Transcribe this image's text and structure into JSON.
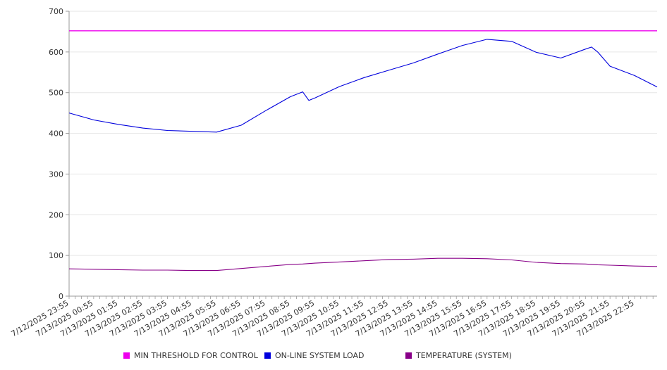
{
  "chart_data": {
    "type": "line",
    "title": "",
    "xlabel": "",
    "ylabel": "",
    "ylim": [
      0,
      700
    ],
    "yticks": [
      0,
      100,
      200,
      300,
      400,
      500,
      600,
      700
    ],
    "grid": true,
    "legend_position": "bottom",
    "x_tick_labels": [
      "7/12/2025 23:55",
      "7/13/2025 00:55",
      "7/13/2025 01:55",
      "7/13/2025 02:55",
      "7/13/2025 03:55",
      "7/13/2025 04:55",
      "7/13/2025 05:55",
      "7/13/2025 06:55",
      "7/13/2025 07:55",
      "7/13/2025 08:55",
      "7/13/2025 09:55",
      "7/13/2025 10:55",
      "7/13/2025 11:55",
      "7/13/2025 12:55",
      "7/13/2025 13:55",
      "7/13/2025 14:55",
      "7/13/2025 15:55",
      "7/13/2025 16:55",
      "7/13/2025 17:55",
      "7/13/2025 18:55",
      "7/13/2025 19:55",
      "7/13/2025 20:55",
      "7/13/2025 21:55",
      "7/13/2025 22:55"
    ],
    "x": [
      "7/12/2025 23:55",
      "7/13/2025 00:55",
      "7/13/2025 01:55",
      "7/13/2025 02:55",
      "7/13/2025 03:55",
      "7/13/2025 04:55",
      "7/13/2025 05:55",
      "7/13/2025 06:55",
      "7/13/2025 07:55",
      "7/13/2025 08:55",
      "7/13/2025 09:25",
      "7/13/2025 09:40",
      "7/13/2025 09:55",
      "7/13/2025 10:55",
      "7/13/2025 11:55",
      "7/13/2025 12:55",
      "7/13/2025 13:55",
      "7/13/2025 14:55",
      "7/13/2025 15:55",
      "7/13/2025 16:55",
      "7/13/2025 17:55",
      "7/13/2025 18:55",
      "7/13/2025 19:55",
      "7/13/2025 20:55",
      "7/13/2025 21:10",
      "7/13/2025 21:25",
      "7/13/2025 21:55",
      "7/13/2025 22:55",
      "7/13/2025 23:50"
    ],
    "series": [
      {
        "name": "MIN THRESHOLD FOR CONTROL",
        "color": "#ee00ee",
        "values": [
          652,
          652,
          652,
          652,
          652,
          652,
          652,
          652,
          652,
          652,
          652,
          652,
          652,
          652,
          652,
          652,
          652,
          652,
          652,
          652,
          652,
          652,
          652,
          652,
          652,
          652,
          652,
          652,
          652
        ]
      },
      {
        "name": "ON-LINE SYSTEM LOAD",
        "color": "#0000dd",
        "values": [
          450,
          433,
          422,
          413,
          407,
          405,
          403,
          420,
          456,
          490,
          502,
          481,
          487,
          515,
          537,
          555,
          573,
          595,
          616,
          631,
          626,
          599,
          585,
          607,
          612,
          600,
          565,
          542,
          514
        ]
      },
      {
        "name": "TEMPERATURE (SYSTEM)",
        "color": "#880088",
        "values": [
          67,
          66,
          65,
          64,
          64,
          63,
          63,
          68,
          73,
          78,
          79,
          80,
          81,
          84,
          87,
          90,
          91,
          93,
          93,
          92,
          89,
          83,
          80,
          79,
          78,
          77,
          76,
          74,
          73
        ]
      }
    ]
  }
}
